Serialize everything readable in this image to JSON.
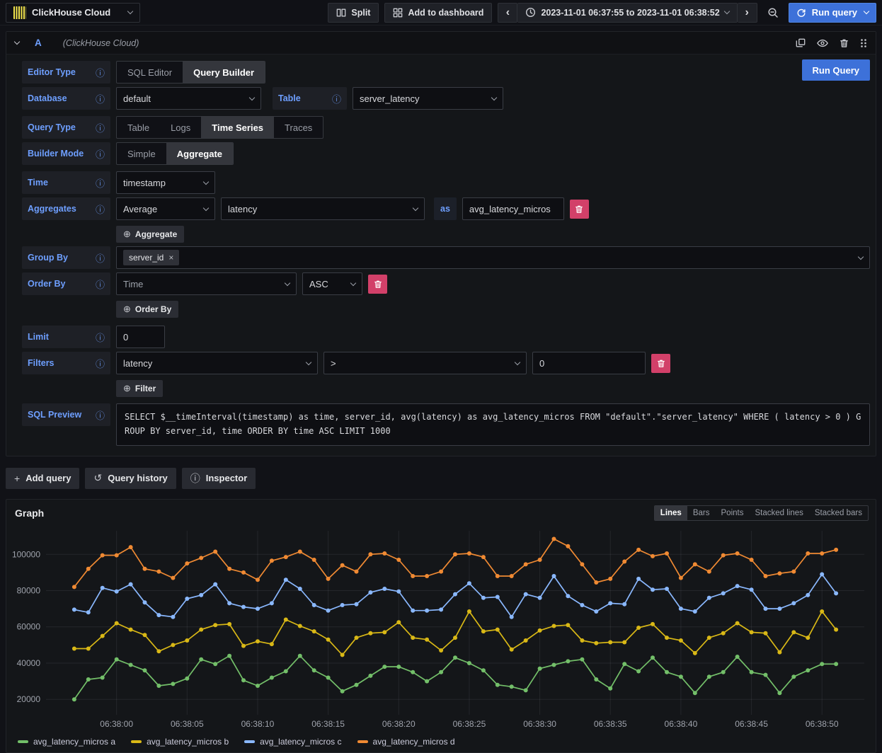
{
  "icons": {
    "plus_circle": "⊕",
    "plus": "+",
    "history": "↺",
    "info": "ⓘ",
    "chevron_left": "‹",
    "chevron_right": "›",
    "close": "×"
  },
  "topbar": {
    "datasource_name": "ClickHouse Cloud",
    "split": "Split",
    "add_to_dashboard": "Add to dashboard",
    "time_range": "2023-11-01 06:37:55 to 2023-11-01 06:38:52",
    "run_query": "Run query"
  },
  "query_editor": {
    "ref_id": "A",
    "datasource_hint": "(ClickHouse Cloud)",
    "run_query": "Run Query",
    "editor_type": {
      "label": "Editor Type",
      "options": [
        "SQL Editor",
        "Query Builder"
      ],
      "selected": "Query Builder"
    },
    "database": {
      "label": "Database",
      "value": "default"
    },
    "table": {
      "label": "Table",
      "value": "server_latency"
    },
    "query_type": {
      "label": "Query Type",
      "options": [
        "Table",
        "Logs",
        "Time Series",
        "Traces"
      ],
      "selected": "Time Series"
    },
    "builder_mode": {
      "label": "Builder Mode",
      "options": [
        "Simple",
        "Aggregate"
      ],
      "selected": "Aggregate"
    },
    "time": {
      "label": "Time",
      "value": "timestamp"
    },
    "aggregates": {
      "label": "Aggregates",
      "function": "Average",
      "column": "latency",
      "as_label": "as",
      "alias": "avg_latency_micros",
      "add_button": "Aggregate"
    },
    "group_by": {
      "label": "Group By",
      "chips": [
        "server_id"
      ]
    },
    "order_by": {
      "label": "Order By",
      "field": "Time",
      "direction": "ASC",
      "add_button": "Order By"
    },
    "limit": {
      "label": "Limit",
      "value": "0"
    },
    "filters": {
      "label": "Filters",
      "field": "latency",
      "operator": ">",
      "value": "0",
      "add_button": "Filter"
    },
    "sql_preview": {
      "label": "SQL Preview",
      "sql": "SELECT $__timeInterval(timestamp) as time, server_id, avg(latency) as avg_latency_micros FROM \"default\".\"server_latency\" WHERE ( latency > 0 ) GROUP BY server_id, time ORDER BY time ASC LIMIT 1000"
    }
  },
  "footer_buttons": {
    "add_query": "Add query",
    "query_history": "Query history",
    "inspector": "Inspector"
  },
  "graph_panel": {
    "title": "Graph",
    "modes": [
      "Lines",
      "Bars",
      "Points",
      "Stacked lines",
      "Stacked bars"
    ],
    "selected_mode": "Lines"
  },
  "chart_data": {
    "type": "line",
    "title": "Graph",
    "xlabel": "",
    "ylabel": "",
    "grid": true,
    "legend_position": "bottom",
    "x_range": [
      "06:37:55",
      "06:38:53"
    ],
    "y_range": [
      15000,
      113000
    ],
    "x_ticks": [
      "06:38:00",
      "06:38:05",
      "06:38:10",
      "06:38:15",
      "06:38:20",
      "06:38:25",
      "06:38:30",
      "06:38:35",
      "06:38:40",
      "06:38:45",
      "06:38:50"
    ],
    "y_ticks": [
      20000,
      40000,
      60000,
      80000,
      100000
    ],
    "x": [
      "06:37:57",
      "06:37:58",
      "06:37:59",
      "06:38:00",
      "06:38:01",
      "06:38:02",
      "06:38:03",
      "06:38:04",
      "06:38:05",
      "06:38:06",
      "06:38:07",
      "06:38:08",
      "06:38:09",
      "06:38:10",
      "06:38:11",
      "06:38:12",
      "06:38:13",
      "06:38:14",
      "06:38:15",
      "06:38:16",
      "06:38:17",
      "06:38:18",
      "06:38:19",
      "06:38:20",
      "06:38:21",
      "06:38:22",
      "06:38:23",
      "06:38:24",
      "06:38:25",
      "06:38:26",
      "06:38:27",
      "06:38:28",
      "06:38:29",
      "06:38:30",
      "06:38:31",
      "06:38:32",
      "06:38:33",
      "06:38:34",
      "06:38:35",
      "06:38:36",
      "06:38:37",
      "06:38:38",
      "06:38:39",
      "06:38:40",
      "06:38:41",
      "06:38:42",
      "06:38:43",
      "06:38:44",
      "06:38:45",
      "06:38:46",
      "06:38:47",
      "06:38:48",
      "06:38:49",
      "06:38:50",
      "06:38:51"
    ],
    "series": [
      {
        "name": "avg_latency_micros a",
        "color": "#73bf69",
        "values": [
          20000,
          31000,
          32000,
          42000,
          39000,
          36000,
          27500,
          28500,
          31500,
          42000,
          39500,
          44000,
          30500,
          27500,
          32000,
          35500,
          44000,
          36000,
          32000,
          24500,
          28000,
          33000,
          38000,
          38000,
          35000,
          30000,
          35000,
          43000,
          40000,
          36000,
          28000,
          27000,
          25000,
          37000,
          39000,
          41000,
          42000,
          31000,
          26000,
          39500,
          35500,
          43000,
          35000,
          32500,
          23500,
          32500,
          35000,
          43500,
          35000,
          33500,
          23500,
          32500,
          36000,
          39500,
          39500
        ]
      },
      {
        "name": "avg_latency_micros b",
        "color": "#d9b816",
        "values": [
          48000,
          48000,
          55000,
          62000,
          58500,
          55500,
          46500,
          50000,
          52500,
          58500,
          61000,
          61500,
          49500,
          52000,
          50500,
          64000,
          60500,
          57500,
          53000,
          44500,
          54000,
          56500,
          57000,
          62500,
          54000,
          53000,
          47000,
          54000,
          68500,
          57500,
          58500,
          47500,
          52500,
          58000,
          60500,
          61000,
          52500,
          51000,
          51500,
          51500,
          59500,
          61500,
          54000,
          52500,
          45500,
          54000,
          56500,
          62000,
          57000,
          56500,
          46000,
          57000,
          54000,
          68500,
          58500
        ]
      },
      {
        "name": "avg_latency_micros c",
        "color": "#8ab8ff",
        "values": [
          69500,
          68000,
          81500,
          79500,
          83500,
          73500,
          66500,
          65500,
          75500,
          77500,
          83500,
          73000,
          71000,
          70000,
          73000,
          86000,
          81000,
          72000,
          69000,
          72000,
          72500,
          79000,
          81000,
          79500,
          69000,
          69000,
          69500,
          78000,
          84000,
          76000,
          76500,
          65500,
          78000,
          76000,
          88000,
          77000,
          72000,
          68500,
          73000,
          72500,
          86500,
          80500,
          81000,
          70000,
          68500,
          76000,
          78500,
          82500,
          80500,
          70000,
          70000,
          73000,
          77500,
          89000,
          78500
        ]
      },
      {
        "name": "avg_latency_micros d",
        "color": "#f08a33",
        "values": [
          82000,
          92000,
          99500,
          99500,
          104000,
          92000,
          90500,
          87000,
          95000,
          98000,
          101500,
          92000,
          90000,
          86000,
          96500,
          98500,
          101500,
          97000,
          86500,
          94000,
          90500,
          100000,
          100500,
          97000,
          88000,
          88000,
          90500,
          100000,
          100500,
          98500,
          88000,
          88000,
          94500,
          97000,
          108500,
          104500,
          94500,
          84500,
          86500,
          96000,
          102500,
          99000,
          100500,
          87000,
          94500,
          90500,
          99500,
          100500,
          97000,
          88000,
          89500,
          90500,
          100500,
          100500,
          102500
        ]
      }
    ]
  }
}
